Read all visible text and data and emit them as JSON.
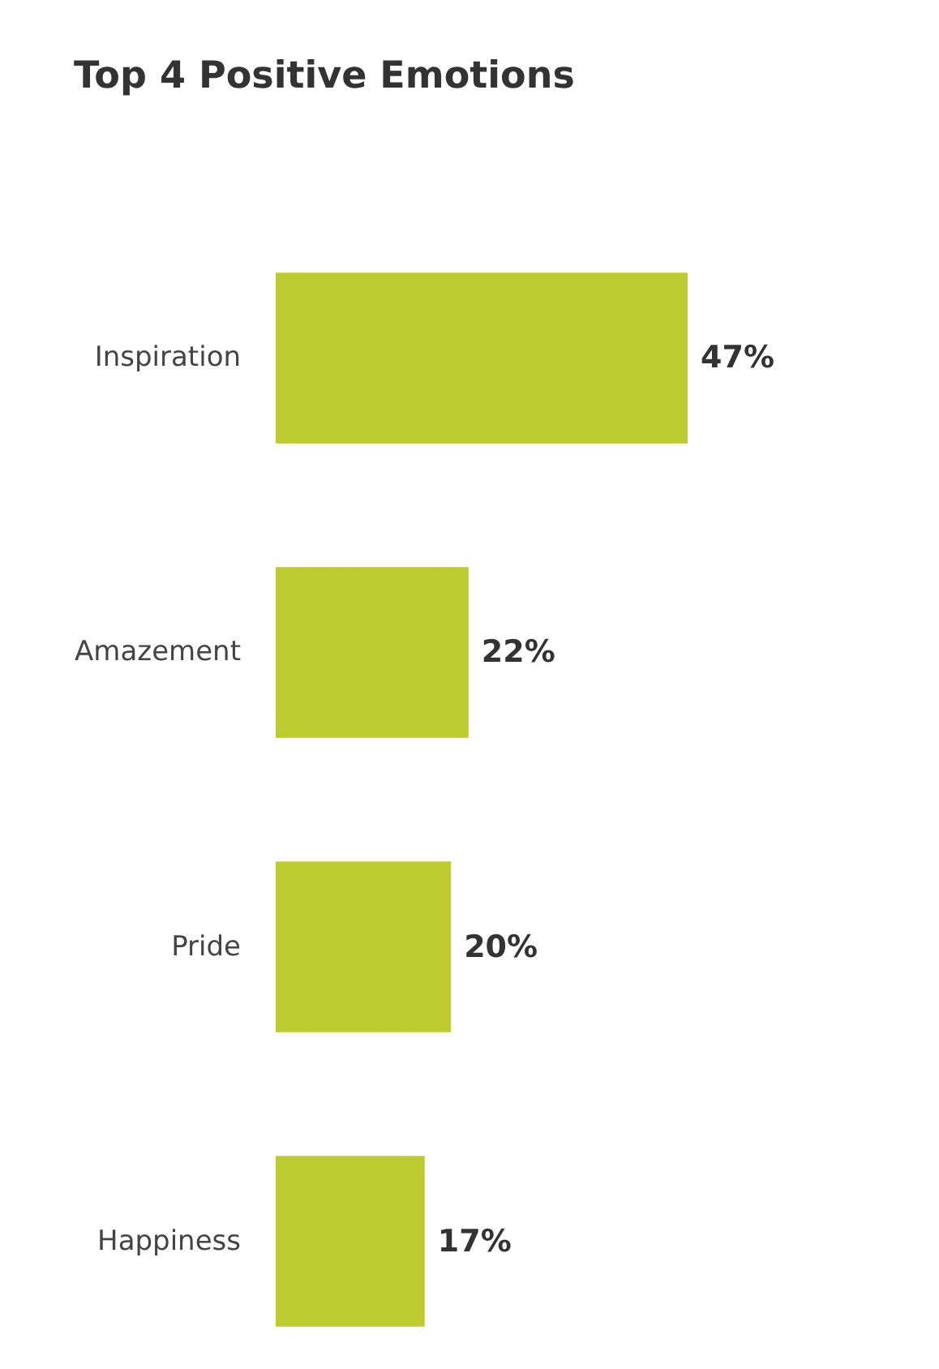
{
  "chart_data": {
    "type": "bar",
    "orientation": "horizontal",
    "title": "Top 4 Positive Emotions",
    "categories": [
      "Inspiration",
      "Amazement",
      "Pride",
      "Happiness"
    ],
    "values": [
      47,
      22,
      20,
      17
    ],
    "color": "#bdcb2e",
    "value_labels": [
      "47%",
      "22%",
      "20%",
      "17%"
    ],
    "tick_labels": "y"
  }
}
